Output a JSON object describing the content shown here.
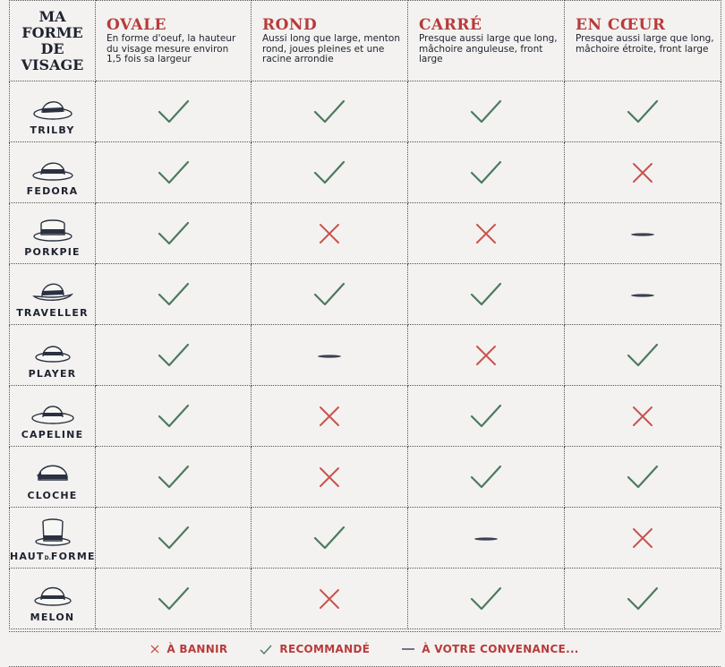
{
  "corner": {
    "line1": "MA",
    "line2": "FORME",
    "line3": "DE",
    "line4": "VISAGE"
  },
  "shapes": [
    {
      "title": "OVALE",
      "desc": "En forme d'oeuf, la hauteur du visage mesure environ 1,5 fois sa largeur"
    },
    {
      "title": "ROND",
      "desc": "Aussi long que large, menton rond, joues pleines et une racine arrondie"
    },
    {
      "title": "CARRÉ",
      "desc": "Presque aussi large que long, mâchoire anguleuse, front large"
    },
    {
      "title": "EN CŒUR",
      "desc": "Presque aussi large que long, mâchoire étroite, front large"
    }
  ],
  "hats": [
    {
      "name": "TRILBY",
      "icon": "trilby-hat-icon",
      "marks": [
        "check",
        "check",
        "check",
        "check"
      ]
    },
    {
      "name": "FEDORA",
      "icon": "fedora-hat-icon",
      "marks": [
        "check",
        "check",
        "check",
        "cross"
      ]
    },
    {
      "name": "PORKPIE",
      "icon": "porkpie-hat-icon",
      "marks": [
        "check",
        "cross",
        "cross",
        "dash"
      ]
    },
    {
      "name": "TRAVELLER",
      "icon": "traveller-hat-icon",
      "marks": [
        "check",
        "check",
        "check",
        "dash"
      ]
    },
    {
      "name": "PLAYER",
      "icon": "player-hat-icon",
      "marks": [
        "check",
        "dash",
        "cross",
        "check"
      ]
    },
    {
      "name": "CAPELINE",
      "icon": "capeline-hat-icon",
      "marks": [
        "check",
        "cross",
        "check",
        "cross"
      ]
    },
    {
      "name": "CLOCHE",
      "icon": "cloche-hat-icon",
      "marks": [
        "check",
        "cross",
        "check",
        "check"
      ]
    },
    {
      "name_main": "HAUT",
      "name_small": "D.",
      "name_end": "FORME",
      "icon": "top-hat-icon",
      "marks": [
        "check",
        "check",
        "dash",
        "cross"
      ]
    },
    {
      "name": "MELON",
      "icon": "bowler-hat-icon",
      "marks": [
        "check",
        "cross",
        "check",
        "check"
      ]
    }
  ],
  "legend": {
    "ban": "À BANNIR",
    "recommended": "RECOMMANDÉ",
    "optional": "À VOTRE CONVENANCE..."
  },
  "colors": {
    "check": "#4d7a5e",
    "cross": "#c9534f",
    "dash": "#3a4152",
    "accent": "#b83b3b"
  }
}
